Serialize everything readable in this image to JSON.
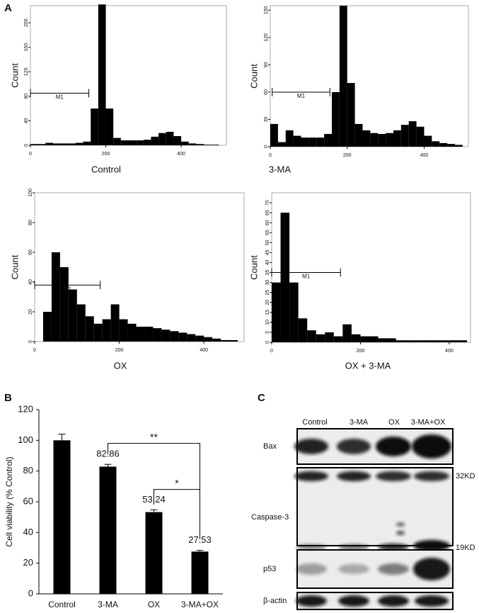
{
  "panels": {
    "a": "A",
    "b": "B",
    "c": "C"
  },
  "chart_data": [
    {
      "type": "histogram",
      "xlabel": "Control",
      "ylabel": "Count",
      "bins": [
        0,
        20,
        40,
        60,
        80,
        100,
        120,
        140,
        160,
        180,
        200,
        220,
        240,
        260,
        280,
        300,
        320,
        340,
        360,
        380,
        400,
        420,
        440,
        460,
        480,
        500
      ],
      "counts": [
        2,
        2,
        4,
        3,
        3,
        3,
        4,
        6,
        60,
        230,
        60,
        12,
        8,
        8,
        8,
        9,
        14,
        20,
        22,
        15,
        6,
        3,
        2,
        1,
        1
      ],
      "color": "#000000",
      "xlim": [
        0,
        520
      ],
      "ylim": [
        0,
        228
      ],
      "xticks": [
        0,
        200,
        400
      ],
      "yticks": [
        0,
        40,
        80,
        120,
        160,
        200
      ],
      "marker": {
        "label": "M1",
        "range": [
          0,
          155
        ],
        "y": 85
      }
    },
    {
      "type": "histogram",
      "xlabel": "3-MA",
      "ylabel": "Count",
      "bins": [
        0,
        20,
        40,
        60,
        80,
        100,
        120,
        140,
        160,
        180,
        200,
        220,
        240,
        260,
        280,
        300,
        320,
        340,
        360,
        380,
        400,
        420,
        440,
        460,
        480,
        500
      ],
      "counts": [
        25,
        5,
        18,
        12,
        10,
        10,
        10,
        14,
        60,
        155,
        70,
        25,
        18,
        15,
        14,
        15,
        18,
        24,
        28,
        22,
        12,
        6,
        4,
        3,
        2
      ],
      "color": "#000000",
      "xlim": [
        0,
        515
      ],
      "ylim": [
        0,
        155
      ],
      "xticks": [
        0,
        200,
        400
      ],
      "yticks": [
        0,
        30,
        60,
        90,
        120,
        150
      ],
      "marker": {
        "label": "M1",
        "range": [
          5,
          155
        ],
        "y": 60
      }
    },
    {
      "type": "histogram",
      "xlabel": "OX",
      "ylabel": "Count",
      "bins": [
        0,
        20,
        40,
        60,
        80,
        100,
        120,
        140,
        160,
        180,
        200,
        220,
        240,
        260,
        280,
        300,
        320,
        340,
        360,
        380,
        400,
        420,
        440,
        460,
        480,
        500
      ],
      "counts": [
        0,
        20,
        60,
        50,
        35,
        25,
        17,
        12,
        15,
        25,
        15,
        12,
        10,
        10,
        9,
        8,
        7,
        6,
        5,
        4,
        3,
        2,
        1,
        1,
        0
      ],
      "color": "#000000",
      "xlim": [
        0,
        495
      ],
      "ylim": [
        0,
        100
      ],
      "xticks": [
        0,
        200,
        400
      ],
      "yticks": [
        0,
        20,
        40,
        60,
        80,
        100
      ],
      "marker": {
        "label": "M1",
        "range": [
          0,
          155
        ],
        "y": 38
      }
    },
    {
      "type": "histogram",
      "xlabel": "OX + 3-MA",
      "ylabel": "Count",
      "bins": [
        0,
        20,
        40,
        60,
        80,
        100,
        120,
        140,
        160,
        180,
        200,
        220,
        240,
        260,
        280,
        300,
        320,
        340,
        360,
        380,
        400,
        420,
        440
      ],
      "counts": [
        30,
        65,
        30,
        12,
        6,
        4,
        5,
        3,
        9,
        4,
        3,
        3,
        2,
        2,
        1,
        1,
        1,
        1,
        1,
        1,
        1,
        1
      ],
      "color": "#000000",
      "xlim": [
        0,
        448
      ],
      "ylim": [
        0,
        75
      ],
      "xticks": [
        0,
        200,
        400
      ],
      "yticks": [
        0,
        5,
        10,
        15,
        20,
        25,
        30,
        35,
        40,
        45,
        50,
        55,
        60,
        65,
        70
      ],
      "marker": {
        "label": "M1",
        "range": [
          0,
          155
        ],
        "y": 35
      }
    },
    {
      "type": "bar",
      "ylabel": "Cell viability (% Control)",
      "categories": [
        "Control",
        "3-MA",
        "OX",
        "3-MA+OX"
      ],
      "values": [
        100,
        82.86,
        53.24,
        27.53
      ],
      "value_labels": [
        null,
        "82.86",
        "53.24",
        "27.53"
      ],
      "errors": [
        4,
        1.5,
        1.5,
        0.8
      ],
      "color": "#000000",
      "ylim": [
        0,
        120
      ],
      "yticks": [
        0,
        20,
        40,
        60,
        80,
        100,
        120
      ],
      "significance": [
        {
          "label": "**",
          "from": 1,
          "to": 3,
          "y": 98
        },
        {
          "label": "*",
          "from": 2,
          "to": 3,
          "y": 68
        }
      ]
    }
  ],
  "blot": {
    "lanes": [
      "Control",
      "3-MA",
      "OX",
      "3-MA+OX"
    ],
    "rows": [
      "Bax",
      "Caspase-3",
      "p53",
      "β-actin"
    ],
    "sizes": [
      "32KD",
      "19KD"
    ]
  }
}
